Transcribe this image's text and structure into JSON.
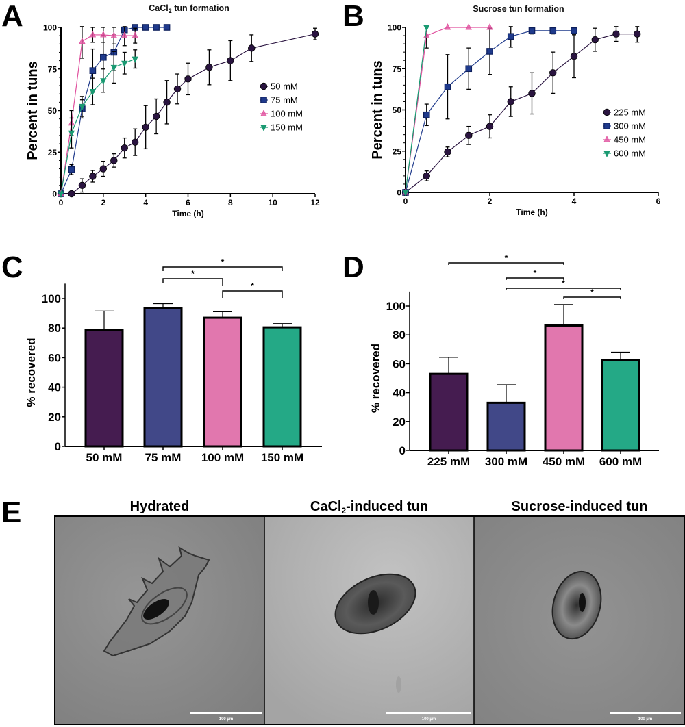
{
  "chart_data": [
    {
      "panel": "A",
      "type": "line",
      "title": "CaCl2 tun formation",
      "title_main": "CaCl",
      "title_sub": "2",
      "title_rest": " tun formation",
      "xlabel": "Time (h)",
      "ylabel": "Percent in tuns",
      "xlim": [
        0,
        12
      ],
      "ylim": [
        0,
        100
      ],
      "xticks": [
        0,
        2,
        4,
        6,
        8,
        10,
        12
      ],
      "xtick_labels": [
        "0",
        "2",
        "4",
        "6",
        "8",
        "10",
        "12"
      ],
      "yticks": [
        0,
        25,
        50,
        75,
        100
      ],
      "ytick_labels": [
        "0",
        "25",
        "50",
        "75",
        "100"
      ],
      "legend_position": "right",
      "series": [
        {
          "name": "50 mM",
          "marker": "circle",
          "color": "#2a1440",
          "x": [
            0,
            0.5,
            1,
            1.5,
            2,
            2.5,
            3,
            3.5,
            4,
            4.5,
            5,
            5.5,
            6,
            7,
            8,
            9,
            12
          ],
          "y": [
            0,
            0,
            5,
            10.5,
            15,
            20,
            27.5,
            31,
            40,
            46.5,
            55,
            63,
            69,
            76,
            80,
            87.5,
            96
          ],
          "err": [
            0,
            0,
            4,
            3.5,
            4.5,
            4,
            6,
            8,
            13,
            10.5,
            13,
            9,
            9.5,
            10.5,
            12,
            8,
            3.5
          ]
        },
        {
          "name": "75 mM",
          "marker": "square",
          "color": "#1f3a8c",
          "x": [
            0,
            0.5,
            1,
            1.5,
            2,
            2.5,
            3,
            3.5,
            4,
            4.5,
            5
          ],
          "y": [
            0,
            14.5,
            51,
            74,
            82,
            85,
            98.5,
            100,
            100,
            100,
            100
          ],
          "err": [
            0,
            3,
            5.5,
            13,
            13,
            11,
            1.5,
            0,
            0,
            0,
            0
          ]
        },
        {
          "name": "100 mM",
          "marker": "triangle-up",
          "color": "#e0509e",
          "x": [
            0,
            0.5,
            1,
            1.5,
            2,
            2.5,
            3,
            3.5
          ],
          "y": [
            0,
            42.5,
            91.5,
            95.5,
            95.5,
            95,
            95,
            95
          ],
          "err": [
            0,
            7.5,
            10,
            4.5,
            4.5,
            5,
            6,
            4.5
          ]
        },
        {
          "name": "150 mM",
          "marker": "triangle-down",
          "color": "#1a9a72",
          "x": [
            0,
            0.5,
            1,
            1.5,
            2,
            2.5,
            3,
            3.5
          ],
          "y": [
            0,
            36.5,
            52.5,
            61.5,
            68,
            76,
            78.5,
            81
          ],
          "err": [
            0,
            9,
            6,
            8,
            7,
            9.5,
            6.5,
            5.5
          ]
        }
      ]
    },
    {
      "panel": "B",
      "type": "line",
      "title": "Sucrose tun formation",
      "xlabel": "Time (h)",
      "ylabel": "Percent in tuns",
      "xlim": [
        0,
        6
      ],
      "ylim": [
        0,
        100
      ],
      "xticks": [
        0,
        2,
        4,
        6
      ],
      "xtick_labels": [
        "0",
        "2",
        "4",
        "6"
      ],
      "yticks": [
        0,
        25,
        50,
        75,
        100
      ],
      "ytick_labels": [
        "0",
        "25",
        "50",
        "75",
        "100"
      ],
      "legend_position": "right",
      "series": [
        {
          "name": "225 mM",
          "marker": "circle",
          "color": "#2a1440",
          "x": [
            0,
            0.5,
            1,
            1.5,
            2,
            2.5,
            3,
            3.5,
            4,
            4.5,
            5,
            5.5
          ],
          "y": [
            0,
            10,
            24.5,
            34.5,
            40,
            55,
            60,
            72.5,
            82.5,
            92.5,
            96,
            96
          ],
          "err": [
            0,
            3,
            3,
            5.5,
            7,
            9,
            12.5,
            12.5,
            13,
            7,
            4.5,
            5
          ]
        },
        {
          "name": "300 mM",
          "marker": "square",
          "color": "#1f3a8c",
          "x": [
            0,
            0.5,
            1,
            1.5,
            2,
            2.5,
            3,
            3.5,
            4
          ],
          "y": [
            0,
            47,
            64,
            75,
            85.5,
            94.5,
            98,
            98,
            98
          ],
          "err": [
            0,
            6.5,
            19.5,
            12.5,
            14,
            6.5,
            2,
            2,
            2
          ]
        },
        {
          "name": "450 mM",
          "marker": "triangle-up",
          "color": "#e0509e",
          "x": [
            0,
            0.5,
            1,
            1.5,
            2
          ],
          "y": [
            0,
            95,
            100,
            100,
            100
          ],
          "err": [
            0,
            7.5,
            0,
            0,
            0
          ]
        },
        {
          "name": "600 mM",
          "marker": "triangle-down",
          "color": "#1a9a72",
          "x": [
            0,
            0.5
          ],
          "y": [
            0,
            100
          ],
          "err": [
            0,
            0
          ]
        }
      ]
    },
    {
      "panel": "C",
      "type": "bar",
      "xlabel": "",
      "ylabel": "% recovered",
      "ylim": [
        0,
        110
      ],
      "yticks": [
        0,
        20,
        40,
        60,
        80,
        100
      ],
      "ytick_labels": [
        "0",
        "20",
        "40",
        "60",
        "80",
        "100"
      ],
      "categories": [
        "50 mM",
        "75 mM",
        "100 mM",
        "150 mM"
      ],
      "values": [
        78.5,
        93.5,
        87,
        80.5
      ],
      "errors": [
        13,
        3,
        4,
        2.5
      ],
      "colors": [
        "#451c50",
        "#414888",
        "#e177ae",
        "#24a986"
      ],
      "significance": [
        {
          "from": 1,
          "to": 3,
          "label": "*"
        },
        {
          "from": 1,
          "to": 2,
          "label": "*"
        },
        {
          "from": 2,
          "to": 3,
          "label": "*"
        }
      ]
    },
    {
      "panel": "D",
      "type": "bar",
      "xlabel": "",
      "ylabel": "% recovered",
      "ylim": [
        0,
        110
      ],
      "yticks": [
        0,
        20,
        40,
        60,
        80,
        100
      ],
      "ytick_labels": [
        "0",
        "20",
        "40",
        "60",
        "80",
        "100"
      ],
      "categories": [
        "225 mM",
        "300 mM",
        "450 mM",
        "600 mM"
      ],
      "values": [
        53,
        33,
        86.5,
        62.5
      ],
      "errors": [
        11.5,
        12.5,
        14.5,
        5.5
      ],
      "colors": [
        "#451c50",
        "#414888",
        "#e177ae",
        "#24a986"
      ],
      "significance": [
        {
          "from": 0,
          "to": 2,
          "label": "*"
        },
        {
          "from": 1,
          "to": 2,
          "label": "*"
        },
        {
          "from": 1,
          "to": 3,
          "label": "*"
        },
        {
          "from": 2,
          "to": 3,
          "label": "*"
        }
      ]
    }
  ],
  "panel_letters": [
    "A",
    "B",
    "C",
    "D",
    "E"
  ],
  "panel_e": {
    "images": [
      {
        "title": "Hydrated",
        "scale_bar": "100 µm",
        "bg": "#8e8e8e"
      },
      {
        "title_main": "CaCl",
        "title_sub": "2",
        "title_rest": "-induced tun",
        "title": "CaCl2-induced tun",
        "scale_bar": "100 µm",
        "bg": "#b3b3b3"
      },
      {
        "title": "Sucrose-induced tun",
        "scale_bar": "100 µm",
        "bg": "#8c8c8c"
      }
    ]
  }
}
